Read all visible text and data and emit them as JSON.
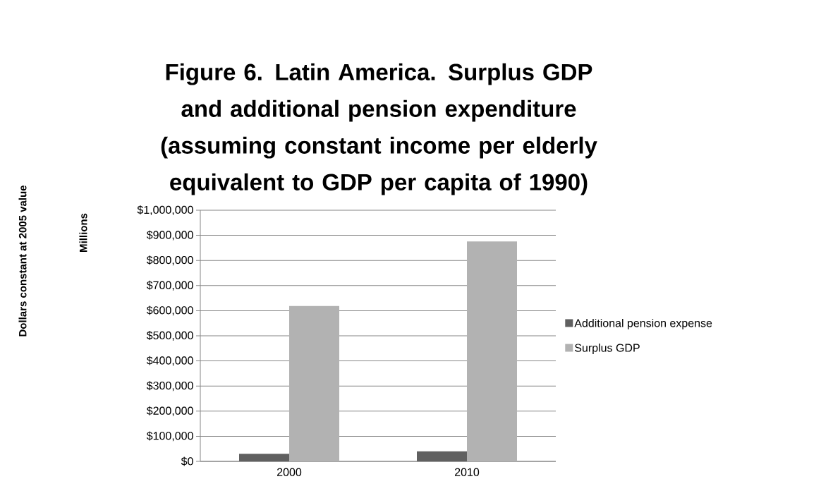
{
  "chart_data": {
    "type": "bar",
    "title": "Figure 6. Latin America. Surplus GDP and additional pension expenditure (assuming constant income per elderly equivalent to GDP per capita of 1990)",
    "ylabel": "Millions",
    "annotations": [
      "Dollars constant at 2005 value"
    ],
    "categories": [
      "2000",
      "2010"
    ],
    "series": [
      {
        "name": "Additional pension expense",
        "color": "#606060",
        "values": [
          30000,
          41000
        ]
      },
      {
        "name": "Surplus GDP",
        "color": "#b2b2b2",
        "values": [
          619000,
          876000
        ]
      }
    ],
    "ylim": [
      0,
      1000000
    ],
    "yticks": [
      {
        "value": 0,
        "label": "$0"
      },
      {
        "value": 100000,
        "label": "$100,000"
      },
      {
        "value": 200000,
        "label": "$200,000"
      },
      {
        "value": 300000,
        "label": "$300,000"
      },
      {
        "value": 400000,
        "label": "$400,000"
      },
      {
        "value": 500000,
        "label": "$500,000"
      },
      {
        "value": 600000,
        "label": "$600,000"
      },
      {
        "value": 700000,
        "label": "$700,000"
      },
      {
        "value": 800000,
        "label": "$800,000"
      },
      {
        "value": 900000,
        "label": "$900,000"
      },
      {
        "value": 1000000,
        "label": "$1,000,000"
      }
    ],
    "grid": "y",
    "legend": "right"
  }
}
